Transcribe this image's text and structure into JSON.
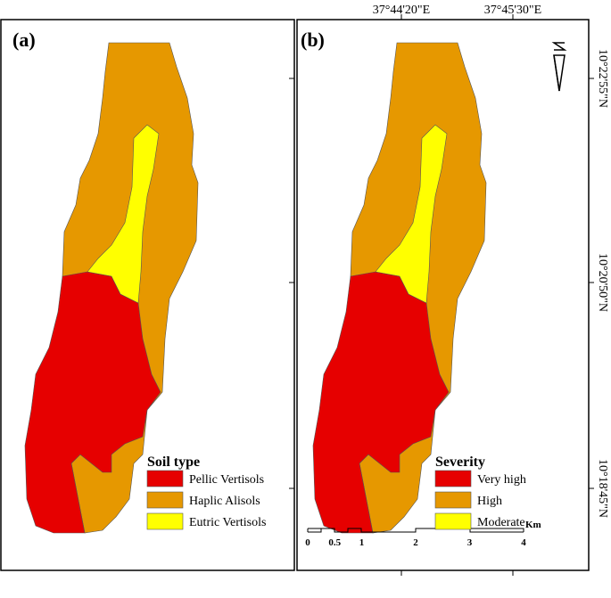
{
  "panels": [
    {
      "label": "(a)",
      "legend": {
        "title": "Soil type",
        "items": [
          {
            "name": "Pellic Vertisols",
            "color": "#e60000"
          },
          {
            "name": "Haplic Alisols",
            "color": "#e69800"
          },
          {
            "name": "Eutric Vertisols",
            "color": "#ffff00"
          }
        ]
      }
    },
    {
      "label": "(b)",
      "legend": {
        "title": "Severity",
        "items": [
          {
            "name": "Very high",
            "color": "#e60000"
          },
          {
            "name": "High",
            "color": "#e69800"
          },
          {
            "name": "Moderate",
            "color": "#ffff00"
          }
        ]
      }
    }
  ],
  "longitudes": [
    "37°44'20\"E",
    "37°45'30\"E"
  ],
  "latitudes": [
    "10°22'55\"N",
    "10°20'50\"N",
    "10°18'45\"N"
  ],
  "scale_bar": {
    "labels": [
      0,
      0.5,
      1,
      2,
      3,
      4
    ],
    "unit": "Km"
  }
}
